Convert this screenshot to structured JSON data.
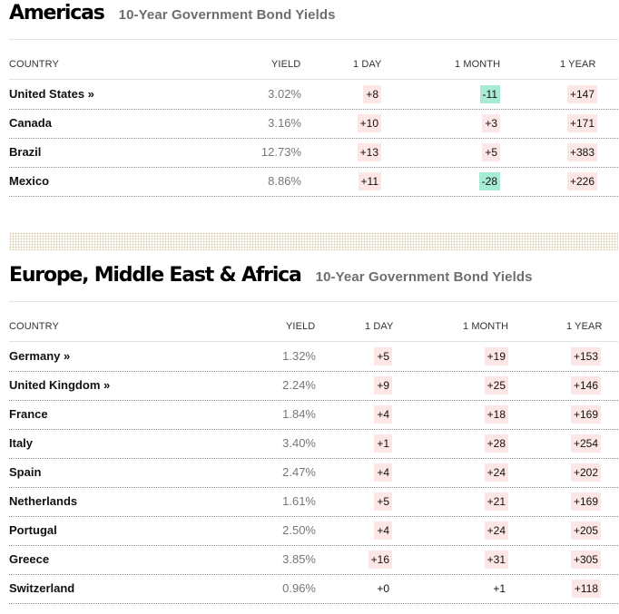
{
  "americas": {
    "title": "Americas",
    "subtitle": "10-Year Government Bond Yields",
    "headers": {
      "country": "COUNTRY",
      "yield": "YIELD",
      "day": "1 DAY",
      "month": "1 MONTH",
      "year": "1 YEAR"
    },
    "rows": [
      {
        "country": "United States »",
        "yield": "3.02%",
        "day": "+8",
        "month": "-11",
        "year": "+147",
        "month_dir": "down"
      },
      {
        "country": "Canada",
        "yield": "3.16%",
        "day": "+10",
        "month": "+3",
        "year": "+171",
        "month_dir": "up"
      },
      {
        "country": "Brazil",
        "yield": "12.73%",
        "day": "+13",
        "month": "+5",
        "year": "+383",
        "month_dir": "up"
      },
      {
        "country": "Mexico",
        "yield": "8.86%",
        "day": "+11",
        "month": "-28",
        "year": "+226",
        "month_dir": "down"
      }
    ]
  },
  "emea": {
    "title": "Europe, Middle East & Africa",
    "subtitle": "10-Year Government Bond Yields",
    "headers": {
      "country": "COUNTRY",
      "yield": "YIELD",
      "day": "1 DAY",
      "month": "1 MONTH",
      "year": "1 YEAR"
    },
    "rows": [
      {
        "country": "Germany »",
        "yield": "1.32%",
        "day": "+5",
        "month": "+19",
        "year": "+153",
        "day_dir": "up"
      },
      {
        "country": "United Kingdom »",
        "yield": "2.24%",
        "day": "+9",
        "month": "+25",
        "year": "+146",
        "day_dir": "up"
      },
      {
        "country": "France",
        "yield": "1.84%",
        "day": "+4",
        "month": "+18",
        "year": "+169",
        "day_dir": "up"
      },
      {
        "country": "Italy",
        "yield": "3.40%",
        "day": "+1",
        "month": "+28",
        "year": "+254",
        "day_dir": "up"
      },
      {
        "country": "Spain",
        "yield": "2.47%",
        "day": "+4",
        "month": "+24",
        "year": "+202",
        "day_dir": "up"
      },
      {
        "country": "Netherlands",
        "yield": "1.61%",
        "day": "+5",
        "month": "+21",
        "year": "+169",
        "day_dir": "up"
      },
      {
        "country": "Portugal",
        "yield": "2.50%",
        "day": "+4",
        "month": "+24",
        "year": "+205",
        "day_dir": "up"
      },
      {
        "country": "Greece",
        "yield": "3.85%",
        "day": "+16",
        "month": "+31",
        "year": "+305",
        "day_dir": "up"
      },
      {
        "country": "Switzerland",
        "yield": "0.96%",
        "day": "+0",
        "month": "+1",
        "year": "+118",
        "day_dir": "flat",
        "month_dir": "flat"
      }
    ]
  },
  "colors": {
    "positive_bg": "#fde6e6",
    "negative_bg": "#a7ead5",
    "subtitle": "#6e6e6e"
  }
}
